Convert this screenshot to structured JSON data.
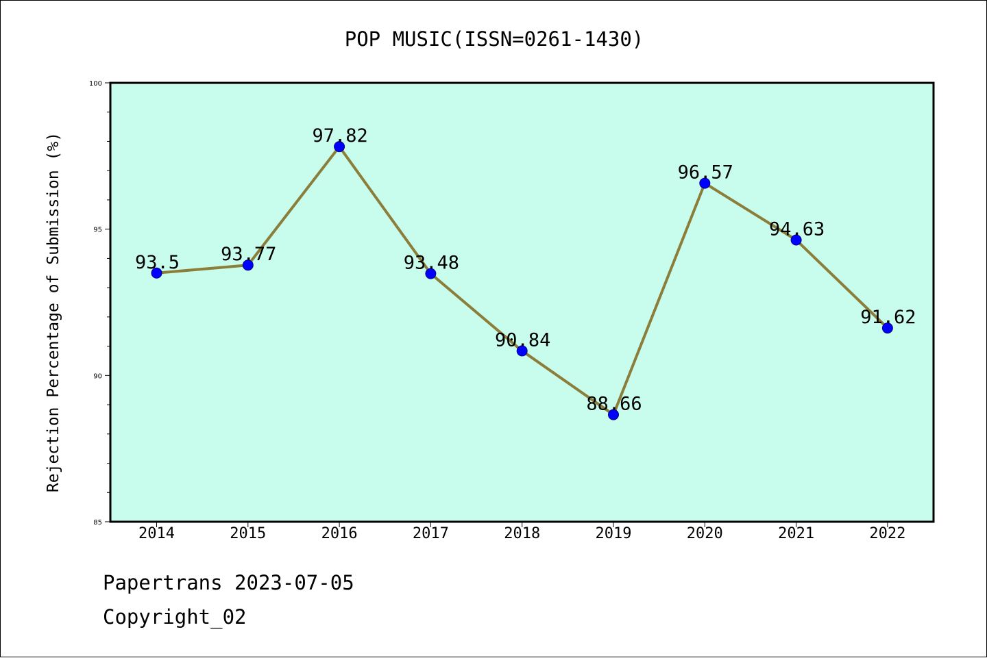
{
  "chart_data": {
    "type": "line",
    "title": "POP MUSIC(ISSN=0261-1430)",
    "xlabel": "",
    "ylabel": "Rejection Percentage of Submission (%)",
    "categories": [
      "2014",
      "2015",
      "2016",
      "2017",
      "2018",
      "2019",
      "2020",
      "2021",
      "2022"
    ],
    "values": [
      93.5,
      93.77,
      97.82,
      93.48,
      90.84,
      88.66,
      96.57,
      94.63,
      91.62
    ],
    "data_labels": [
      "93.5",
      "93.77",
      "97.82",
      "93.48",
      "90.84",
      "88.66",
      "96.57",
      "94.63",
      "91.62"
    ],
    "ylim": [
      85,
      100
    ],
    "yticks": [
      "85",
      "90",
      "95",
      "100"
    ],
    "grid": false,
    "colors": {
      "plot_background": "#c8fcec",
      "line": "#8b7d3a",
      "marker": "#0000ff",
      "axes": "#000000"
    }
  },
  "footer": {
    "source": "Papertrans 2023-07-05",
    "copyright": "Copyright_02"
  }
}
